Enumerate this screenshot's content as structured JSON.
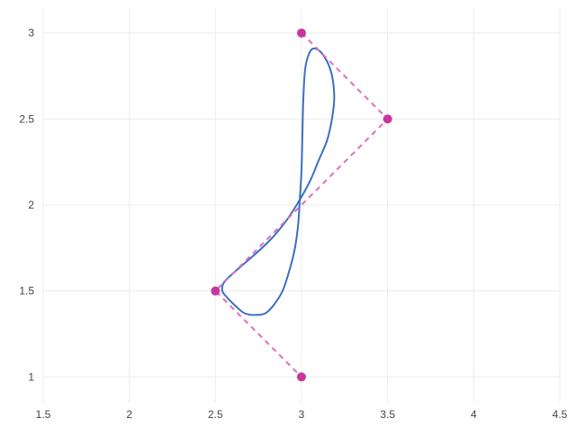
{
  "chart_data": {
    "type": "line",
    "title": "",
    "xlabel": "",
    "ylabel": "",
    "xlim": [
      1.5,
      4.5
    ],
    "ylim": [
      0.85,
      3.15
    ],
    "xticks": [
      1.5,
      2,
      2.5,
      3,
      3.5,
      4,
      4.5
    ],
    "yticks": [
      1,
      1.5,
      2,
      2.5,
      3
    ],
    "grid": true,
    "legend": "none",
    "series": [
      {
        "kind": "curve",
        "color": "#3a6fc4",
        "x": [
          2.55,
          2.6,
          2.68,
          2.76,
          2.84,
          2.92,
          2.99,
          3.05,
          3.1,
          3.15,
          3.18,
          3.19,
          3.17,
          3.12,
          3.07,
          3.04,
          3.02,
          3.01,
          3.005,
          3.0,
          2.99,
          2.98,
          2.96,
          2.93,
          2.89,
          2.84,
          2.79,
          2.73,
          2.67,
          2.62,
          2.57,
          2.54
        ],
        "y": [
          1.55,
          1.6,
          1.67,
          1.74,
          1.82,
          1.92,
          2.03,
          2.14,
          2.26,
          2.38,
          2.52,
          2.64,
          2.78,
          2.88,
          2.91,
          2.87,
          2.78,
          2.6,
          2.4,
          2.2,
          2.03,
          1.88,
          1.74,
          1.62,
          1.5,
          1.42,
          1.37,
          1.36,
          1.37,
          1.41,
          1.46,
          1.5
        ]
      },
      {
        "kind": "control-polygon",
        "color": "#dd6fba",
        "dash": "dashed",
        "x": [
          3,
          3.5,
          2.5,
          3
        ],
        "y": [
          3,
          2.5,
          1.5,
          1
        ]
      },
      {
        "kind": "control-points",
        "color": "#c6379e",
        "x": [
          3,
          3.5,
          2.5,
          3
        ],
        "y": [
          3,
          2.5,
          1.5,
          1
        ]
      }
    ]
  }
}
